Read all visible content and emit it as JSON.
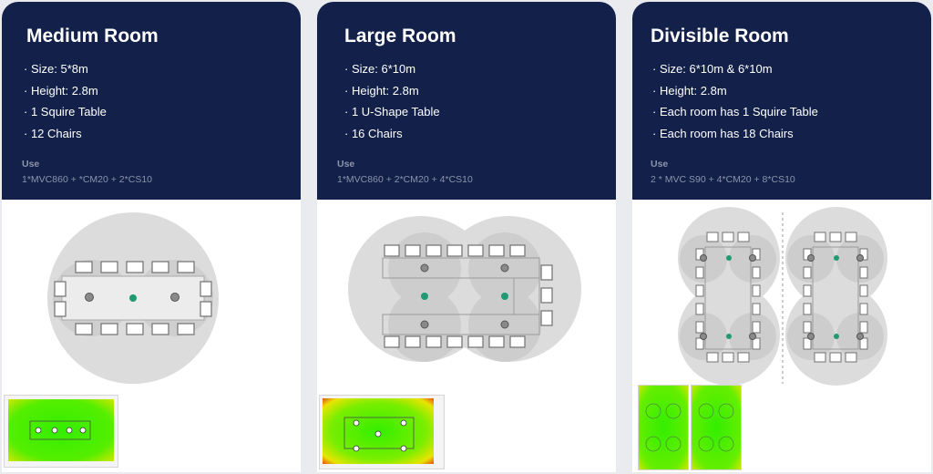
{
  "rooms": [
    {
      "title": "Medium Room",
      "specs": [
        "Size: 5*8m",
        "Height: 2.8m",
        "1 Squire Table",
        "12 Chairs"
      ],
      "use_label": "Use",
      "use_value": "1*MVC860 + *CM20 + 2*CS10"
    },
    {
      "title": "Large Room",
      "specs": [
        "Size: 6*10m",
        "Height: 2.8m",
        "1 U-Shape Table",
        "16 Chairs"
      ],
      "use_label": "Use",
      "use_value": "1*MVC860 + 2*CM20 + 4*CS10"
    },
    {
      "title": "Divisible Room",
      "specs": [
        "Size: 6*10m & 6*10m",
        "Height: 2.8m",
        "Each room has 1 Squire Table",
        "Each room has 18 Chairs"
      ],
      "use_label": "Use",
      "use_value": "2 * MVC S90 + 4*CM20 + 8*CS10"
    }
  ],
  "colors": {
    "header_bg": "#12204a",
    "accent_dot": "#1f9a73",
    "coverage_circle": "#dcdcdc",
    "heatmap_green": "#33ee00",
    "heatmap_yellow": "#e8e400",
    "heatmap_red": "#e83a10"
  }
}
